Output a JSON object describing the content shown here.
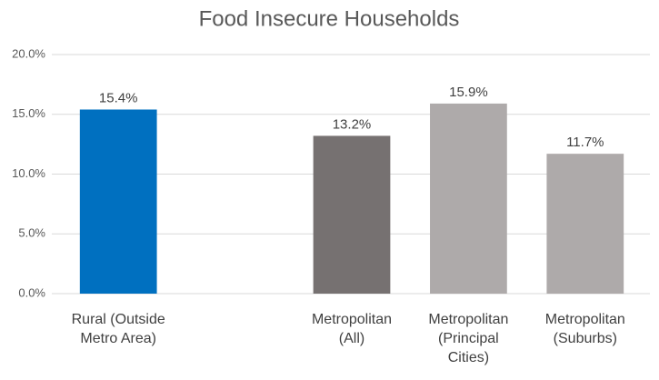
{
  "chart_data": {
    "type": "bar",
    "title": "Food Insecure Households",
    "categories": [
      "Rural (Outside Metro Area)",
      null,
      "Metropolitan (All)",
      "Metropolitan (Principal Cities)",
      "Metropolitan (Suburbs)"
    ],
    "values": [
      15.4,
      null,
      13.2,
      15.9,
      11.7
    ],
    "value_labels": [
      "15.4%",
      null,
      "13.2%",
      "15.9%",
      "11.7%"
    ],
    "colors": [
      "#0070c0",
      null,
      "#767171",
      "#aeaaaa",
      "#aeaaaa"
    ],
    "ylim": [
      0,
      20
    ],
    "yticks": [
      {
        "value": 0,
        "label": "0.0%"
      },
      {
        "value": 5,
        "label": "5.0%"
      },
      {
        "value": 10,
        "label": "10.0%"
      },
      {
        "value": 15,
        "label": "15.0%"
      },
      {
        "value": 20,
        "label": "20.0%"
      }
    ],
    "grid": true
  }
}
